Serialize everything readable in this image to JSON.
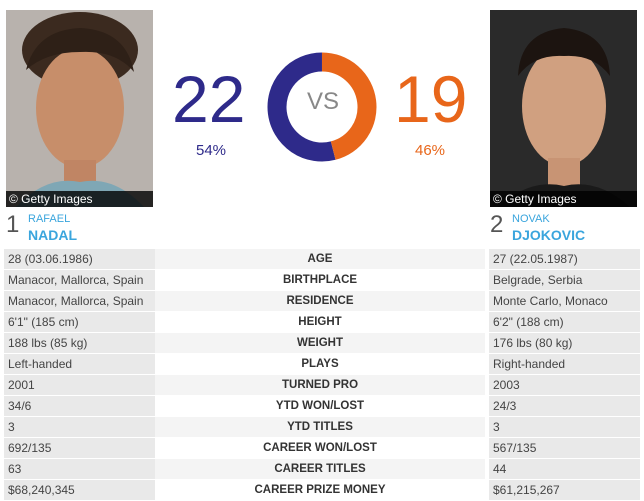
{
  "player1": {
    "rank": "1",
    "first_name": "RAFAEL",
    "last_name": "NADAL",
    "wins": "22",
    "pct": "54%",
    "credit": "© Getty Images",
    "color": "#2e2a8a"
  },
  "player2": {
    "rank": "2",
    "first_name": "NOVAK",
    "last_name": "DJOKOVIC",
    "wins": "19",
    "pct": "46%",
    "credit": "© Getty Images",
    "color": "#e8661a"
  },
  "vs_label": "VS",
  "head_to_head": {
    "player1_share": 0.54,
    "player2_share": 0.46
  },
  "stats": [
    {
      "label": "AGE",
      "p1": "28 (03.06.1986)",
      "p2": "27 (22.05.1987)"
    },
    {
      "label": "BIRTHPLACE",
      "p1": "Manacor, Mallorca, Spain",
      "p2": "Belgrade, Serbia"
    },
    {
      "label": "RESIDENCE",
      "p1": "Manacor, Mallorca, Spain",
      "p2": "Monte Carlo, Monaco"
    },
    {
      "label": "HEIGHT",
      "p1": "6'1\" (185 cm)",
      "p2": "6'2\" (188 cm)"
    },
    {
      "label": "WEIGHT",
      "p1": "188 lbs (85 kg)",
      "p2": "176 lbs (80 kg)"
    },
    {
      "label": "PLAYS",
      "p1": "Left-handed",
      "p2": "Right-handed"
    },
    {
      "label": "TURNED PRO",
      "p1": "2001",
      "p2": "2003"
    },
    {
      "label": "YTD WON/LOST",
      "p1": "34/6",
      "p2": "24/3"
    },
    {
      "label": "YTD TITLES",
      "p1": "3",
      "p2": "3"
    },
    {
      "label": "CAREER WON/LOST",
      "p1": "692/135",
      "p2": "567/135"
    },
    {
      "label": "CAREER TITLES",
      "p1": "63",
      "p2": "44"
    },
    {
      "label": "CAREER PRIZE MONEY",
      "p1": "$68,240,345",
      "p2": "$61,215,267"
    }
  ]
}
